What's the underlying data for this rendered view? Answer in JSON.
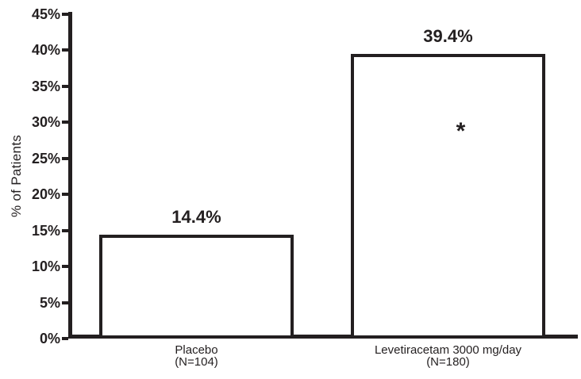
{
  "chart_data": {
    "type": "bar",
    "title": "",
    "xlabel": "",
    "ylabel": "% of Patients",
    "ylim": [
      0,
      45
    ],
    "ytick_step": 5,
    "ytick_labels": [
      "0%",
      "5%",
      "10%",
      "15%",
      "20%",
      "25%",
      "30%",
      "35%",
      "40%",
      "45%"
    ],
    "grid": false,
    "legend": null,
    "bar_fill": "#ffffff",
    "ink_color": "#231f20",
    "background": "#ffffff",
    "bars": [
      {
        "category_line1": "Placebo",
        "category_line2": "(N=104)",
        "value": 14.4,
        "value_label": "14.4%",
        "annotation": "",
        "annotation_y": null
      },
      {
        "category_line1": "Levetiracetam 3000 mg/day",
        "category_line2": "(N=180)",
        "value": 39.4,
        "value_label": "39.4%",
        "annotation": "*",
        "annotation_y": 28.7
      }
    ]
  }
}
